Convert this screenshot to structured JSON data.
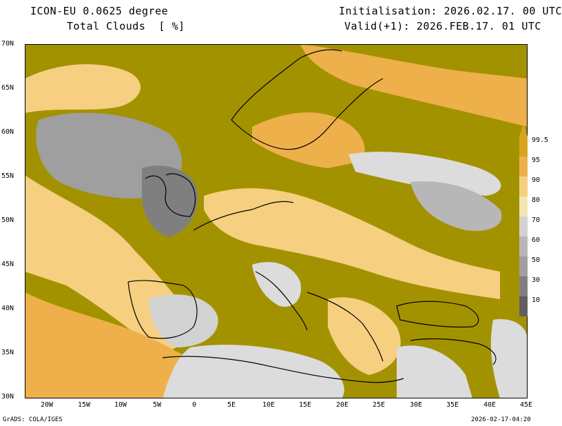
{
  "header": {
    "model": "ICON-EU 0.0625 degree",
    "field": "Total Clouds  [ %]",
    "init": "Initialisation: 2026.02.17. 00 UTC",
    "valid": "Valid(+1): 2026.FEB.17. 01 UTC"
  },
  "axes": {
    "lat_labels": [
      "70N",
      "65N",
      "60N",
      "55N",
      "50N",
      "45N",
      "40N",
      "35N",
      "30N"
    ],
    "lon_labels": [
      "20W",
      "15W",
      "10W",
      "5W",
      "0",
      "5E",
      "10E",
      "15E",
      "20E",
      "25E",
      "30E",
      "35E",
      "40E",
      "45E"
    ],
    "lat_range": [
      30,
      70
    ],
    "lon_range": [
      -23,
      45
    ]
  },
  "legend": {
    "levels": [
      "10",
      "30",
      "50",
      "60",
      "70",
      "80",
      "90",
      "95",
      "99.5"
    ],
    "colors": [
      "#5f5f5f",
      "#7f7f7f",
      "#9f9f9f",
      "#b7b7b7",
      "#d2d2d2",
      "#f3e6b2",
      "#f6cf80",
      "#eeb04a",
      "#d4a520"
    ]
  },
  "colors": {
    "overcast": "#a39200",
    "clear": "#dcdcdc",
    "border": "#000000"
  },
  "footer": {
    "left": "GrADS: COLA/IGES",
    "right": "2026-02-17-04:20"
  }
}
